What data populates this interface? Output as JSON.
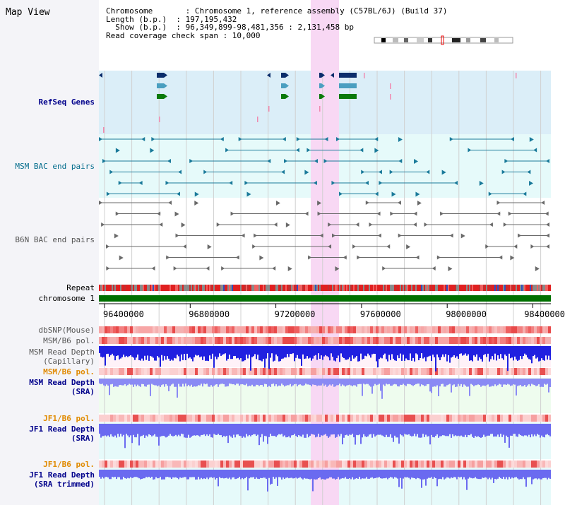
{
  "map_title": "Map View",
  "info": {
    "chromosome_line": "Chromosome       : Chromosome 1, reference assembly (C57BL/6J) (Build 37)",
    "length_line": "Length (b.p.)  : 197,195,432",
    "show_line": "  Show (b.p.)  : 96,349,899-98,481,356 : 2,131,458 bp",
    "span_line": "Read coverage check span : 10,000"
  },
  "tracks": {
    "refseq": "RefSeq Genes",
    "msm_bac": "MSM BAC end pairs",
    "b6n_bac": "B6N BAC end pairs",
    "repeat": "Repeat",
    "chromosome": "chromosome 1",
    "dbsnp": "dbSNP(Mouse)",
    "msm_b6_pol": "MSM/B6 pol.",
    "msm_depth_cap_1": "MSM Read Depth",
    "msm_depth_cap_2": "(Capillary)",
    "msm_b6_pol2": "MSM/B6 pol.",
    "msm_depth_sra_1": "MSM Read Depth",
    "msm_depth_sra_2": "(SRA)",
    "jf1_b6_pol": "JF1/B6 pol.",
    "jf1_depth_sra_1": "JF1 Read Depth",
    "jf1_depth_sra_2": "(SRA)",
    "jf1_b6_pol2": "JF1/B6 pol.",
    "jf1_depth_trim_1": "JF1 Read Depth",
    "jf1_depth_trim_2": "(SRA trimmed)"
  },
  "axis_ticks": [
    "96400000",
    "96800000",
    "97200000",
    "97600000",
    "98000000",
    "98400000"
  ],
  "colors": {
    "highlight": "#f8d8f4",
    "refseq_bg": "#dbeef8",
    "msm_bg": "#e6fafa",
    "depth_bar": "#2222dd",
    "chromosome_bar": "#007000"
  }
}
